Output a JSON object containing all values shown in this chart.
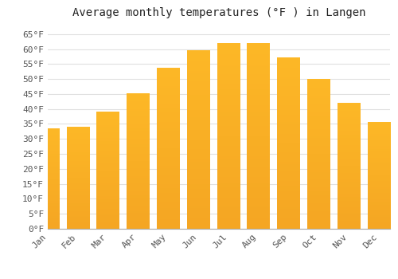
{
  "title": "Average monthly temperatures (°F ) in Langen",
  "months": [
    "Jan",
    "Feb",
    "Mar",
    "Apr",
    "May",
    "Jun",
    "Jul",
    "Aug",
    "Sep",
    "Oct",
    "Nov",
    "Dec"
  ],
  "values": [
    33.5,
    34.0,
    39.0,
    45.0,
    53.5,
    59.5,
    62.0,
    62.0,
    57.0,
    50.0,
    42.0,
    35.5
  ],
  "bar_color_top": "#FDB827",
  "bar_color_bottom": "#F5A623",
  "background_color": "#ffffff",
  "grid_color": "#e0e0e0",
  "ylim": [
    0,
    68
  ],
  "yticks": [
    0,
    5,
    10,
    15,
    20,
    25,
    30,
    35,
    40,
    45,
    50,
    55,
    60,
    65
  ],
  "ylabel_suffix": "°F",
  "title_fontsize": 10,
  "tick_fontsize": 8,
  "bar_width": 0.75
}
